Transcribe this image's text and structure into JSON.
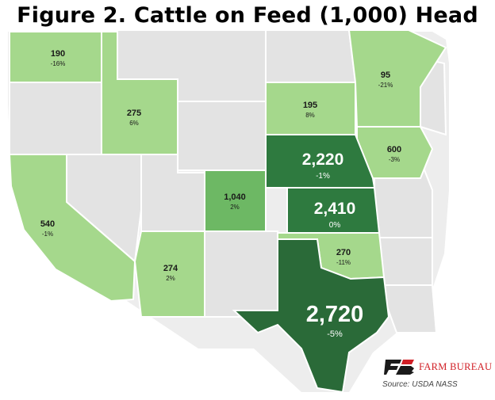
{
  "title": "Figure 2. Cattle on Feed (1,000) Head",
  "brand": "FARM BUREAU",
  "source": "Source:  USDA NASS",
  "colors": {
    "map_background": "#ededed",
    "no_data_state": "#e3e3e3",
    "state_border": "#ffffff",
    "light": "#a5d88c",
    "medium": "#6db864",
    "dark": "#2e7a3f",
    "darkest": "#2a6a38",
    "brand_red": "#d11f26"
  },
  "states": [
    {
      "id": "WA",
      "value": "190",
      "change": "-16%"
    },
    {
      "id": "ID",
      "value": "275",
      "change": "6%"
    },
    {
      "id": "CA",
      "value": "540",
      "change": "-1%"
    },
    {
      "id": "AZ",
      "value": "274",
      "change": "2%"
    },
    {
      "id": "CO",
      "value": "1,040",
      "change": "2%"
    },
    {
      "id": "SD",
      "value": "195",
      "change": "8%"
    },
    {
      "id": "MN",
      "value": "95",
      "change": "-21%"
    },
    {
      "id": "IA",
      "value": "600",
      "change": "-3%"
    },
    {
      "id": "NE",
      "value": "2,220",
      "change": "-1%"
    },
    {
      "id": "KS",
      "value": "2,410",
      "change": "0%"
    },
    {
      "id": "OK",
      "value": "270",
      "change": "-11%"
    },
    {
      "id": "TX",
      "value": "2,720",
      "change": "-5%"
    }
  ]
}
